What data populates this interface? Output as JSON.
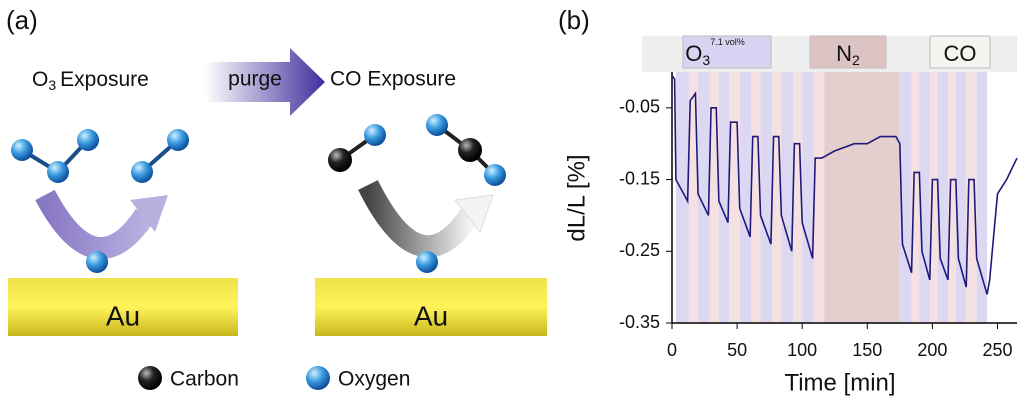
{
  "diagram": {
    "panel_label": "(a)",
    "left_title": {
      "text": "O",
      "sub": "3",
      "rest": "Exposure"
    },
    "arrow_label": "purge",
    "right_title": "CO Exposure",
    "left_surface": "Au",
    "right_surface": "Au",
    "legend": [
      "Carbon",
      "Oxygen"
    ]
  },
  "chart_data": {
    "type": "line",
    "panel_label": "(b)",
    "xlabel": "Time [min]",
    "ylabel": "dL/L [%]",
    "color": "#1f1a7a",
    "xlim": [
      0,
      265
    ],
    "xticks": [
      0,
      50,
      100,
      150,
      200,
      250
    ],
    "ylim": [
      -0.35,
      0.0
    ],
    "yticks": [
      -0.05,
      -0.15,
      -0.25,
      -0.35
    ],
    "header_labels": [
      {
        "text": "O",
        "sub": "3",
        "sup": "7.1 vol%",
        "color": "#d8d3f2"
      },
      {
        "text": "N",
        "sub": "2",
        "color": "#dcc4c4"
      },
      {
        "text": "CO",
        "color": "#f4f4f0"
      }
    ],
    "bands": [
      {
        "x": [
          3,
          13
        ],
        "color": "#dcd8f2"
      },
      {
        "x": [
          13,
          20
        ],
        "color": "#f5e1e1"
      },
      {
        "x": [
          20,
          29
        ],
        "color": "#dcd8f2"
      },
      {
        "x": [
          29,
          36
        ],
        "color": "#f5e1e1"
      },
      {
        "x": [
          36,
          44
        ],
        "color": "#dcd8f2"
      },
      {
        "x": [
          44,
          52
        ],
        "color": "#f5e1e1"
      },
      {
        "x": [
          52,
          61
        ],
        "color": "#dcd8f2"
      },
      {
        "x": [
          61,
          68
        ],
        "color": "#f5e1e1"
      },
      {
        "x": [
          68,
          77
        ],
        "color": "#dcd8f2"
      },
      {
        "x": [
          77,
          84
        ],
        "color": "#f5e1e1"
      },
      {
        "x": [
          84,
          93
        ],
        "color": "#dcd8f2"
      },
      {
        "x": [
          93,
          100
        ],
        "color": "#f5e1e1"
      },
      {
        "x": [
          100,
          109
        ],
        "color": "#dcd8f2"
      },
      {
        "x": [
          109,
          117
        ],
        "color": "#f5e1e1"
      },
      {
        "x": [
          117,
          175
        ],
        "color": "#e4cfcf"
      },
      {
        "x": [
          175,
          184
        ],
        "color": "#dcd8f2"
      },
      {
        "x": [
          184,
          190
        ],
        "color": "#f5e1e1"
      },
      {
        "x": [
          190,
          198
        ],
        "color": "#dcd8f2"
      },
      {
        "x": [
          198,
          204
        ],
        "color": "#f5e1e1"
      },
      {
        "x": [
          204,
          212
        ],
        "color": "#dcd8f2"
      },
      {
        "x": [
          212,
          218
        ],
        "color": "#f5e1e1"
      },
      {
        "x": [
          218,
          226
        ],
        "color": "#dcd8f2"
      },
      {
        "x": [
          226,
          234
        ],
        "color": "#f5e1e1"
      },
      {
        "x": [
          234,
          242
        ],
        "color": "#dcd8f2"
      }
    ],
    "x": [
      0,
      2,
      3,
      12,
      14,
      18,
      20,
      28,
      30,
      34,
      36,
      43,
      45,
      50,
      52,
      60,
      62,
      66,
      68,
      76,
      78,
      82,
      84,
      92,
      94,
      98,
      100,
      108,
      110,
      115,
      125,
      140,
      150,
      160,
      172,
      175,
      177,
      184,
      186,
      190,
      192,
      198,
      200,
      204,
      206,
      212,
      214,
      218,
      220,
      226,
      228,
      232,
      234,
      242,
      244,
      250,
      257,
      265
    ],
    "values": [
      -0.005,
      -0.01,
      -0.15,
      -0.18,
      -0.04,
      -0.03,
      -0.17,
      -0.2,
      -0.05,
      -0.05,
      -0.18,
      -0.21,
      -0.07,
      -0.07,
      -0.19,
      -0.23,
      -0.09,
      -0.09,
      -0.2,
      -0.24,
      -0.09,
      -0.09,
      -0.2,
      -0.25,
      -0.1,
      -0.1,
      -0.21,
      -0.26,
      -0.12,
      -0.12,
      -0.11,
      -0.1,
      -0.1,
      -0.09,
      -0.09,
      -0.1,
      -0.24,
      -0.28,
      -0.14,
      -0.14,
      -0.25,
      -0.29,
      -0.15,
      -0.15,
      -0.26,
      -0.29,
      -0.15,
      -0.15,
      -0.26,
      -0.3,
      -0.15,
      -0.15,
      -0.26,
      -0.31,
      -0.29,
      -0.17,
      -0.15,
      -0.12
    ]
  }
}
